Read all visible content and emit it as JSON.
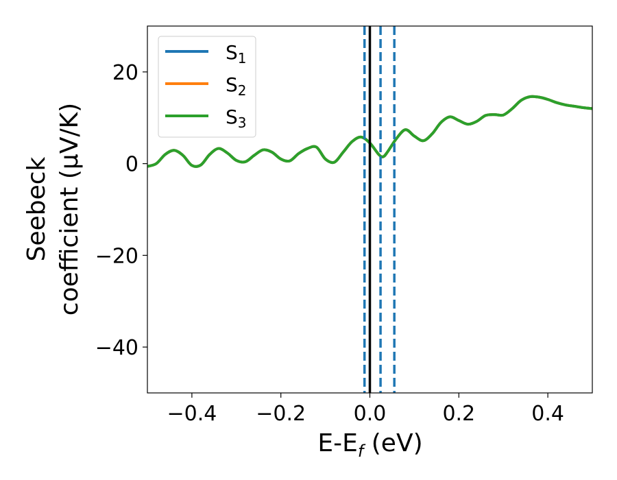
{
  "chart_data": {
    "type": "line",
    "xlabel_parts": {
      "main": "E-E",
      "sub": "f",
      "tail": " (eV)"
    },
    "ylabel_lines": [
      "Seebeck",
      "coefficient  (μV/K)"
    ],
    "xlim": [
      -0.5,
      0.5
    ],
    "ylim": [
      -50,
      30
    ],
    "xticks": [
      -0.4,
      -0.2,
      0.0,
      0.2,
      0.4
    ],
    "xtick_labels": [
      "−0.4",
      "−0.2",
      "0.0",
      "0.2",
      "0.4"
    ],
    "yticks": [
      -40,
      -20,
      0,
      20
    ],
    "ytick_labels": [
      "−40",
      "−20",
      "0",
      "20"
    ],
    "grid": false,
    "legend_position": "top-left",
    "series": [
      {
        "name_base": "S",
        "name_sub": "1",
        "color": "#1f77b4"
      },
      {
        "name_base": "S",
        "name_sub": "2",
        "color": "#ff7f0e"
      },
      {
        "name_base": "S",
        "name_sub": "3",
        "color": "#2ca02c"
      }
    ],
    "curve_x": [
      -0.5,
      -0.48,
      -0.46,
      -0.44,
      -0.42,
      -0.4,
      -0.38,
      -0.36,
      -0.34,
      -0.32,
      -0.3,
      -0.28,
      -0.26,
      -0.24,
      -0.22,
      -0.2,
      -0.18,
      -0.16,
      -0.14,
      -0.12,
      -0.1,
      -0.08,
      -0.06,
      -0.04,
      -0.02,
      0.0,
      0.02,
      0.03,
      0.04,
      0.06,
      0.08,
      0.1,
      0.12,
      0.14,
      0.16,
      0.18,
      0.2,
      0.22,
      0.24,
      0.26,
      0.28,
      0.3,
      0.32,
      0.34,
      0.36,
      0.38,
      0.4,
      0.42,
      0.44,
      0.46,
      0.48,
      0.5
    ],
    "curve_y": [
      -0.6,
      0.0,
      2.0,
      2.9,
      1.8,
      -0.4,
      -0.3,
      2.0,
      3.3,
      2.3,
      0.7,
      0.4,
      1.8,
      3.0,
      2.5,
      1.0,
      0.6,
      2.2,
      3.3,
      3.6,
      1.0,
      0.3,
      2.5,
      4.8,
      5.8,
      4.5,
      2.0,
      1.5,
      2.6,
      5.5,
      7.4,
      6.0,
      5.0,
      6.5,
      9.0,
      10.2,
      9.4,
      8.6,
      9.2,
      10.5,
      10.7,
      10.6,
      12.0,
      13.8,
      14.6,
      14.5,
      14.0,
      13.3,
      12.8,
      12.5,
      12.2,
      12.0
    ],
    "fermi_line_x": 0.0,
    "dashed_lines_x": [
      -0.012,
      0.024,
      0.055
    ],
    "fermi_color": "#000000",
    "dashed_color": "#1f77b4"
  }
}
